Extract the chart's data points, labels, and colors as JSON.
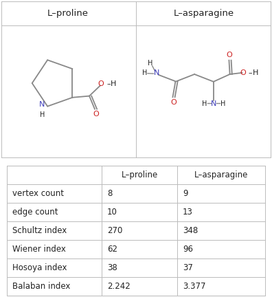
{
  "col1_header": "L–proline",
  "col2_header": "L–asparagine",
  "rows": [
    {
      "label": "vertex count",
      "val1": "8",
      "val2": "9"
    },
    {
      "label": "edge count",
      "val1": "10",
      "val2": "13"
    },
    {
      "label": "Schultz index",
      "val1": "270",
      "val2": "348"
    },
    {
      "label": "Wiener index",
      "val1": "62",
      "val2": "96"
    },
    {
      "label": "Hosoya index",
      "val1": "38",
      "val2": "37"
    },
    {
      "label": "Balaban index",
      "val1": "2.242",
      "val2": "3.377"
    }
  ],
  "bg_color": "#ffffff",
  "text_color": "#222222",
  "border_color": "#bbbbbb",
  "nitrogen_color": "#4040bb",
  "oxygen_color": "#cc2020",
  "bond_color": "#888888",
  "fig_width": 3.96,
  "fig_height": 4.32,
  "dpi": 100
}
